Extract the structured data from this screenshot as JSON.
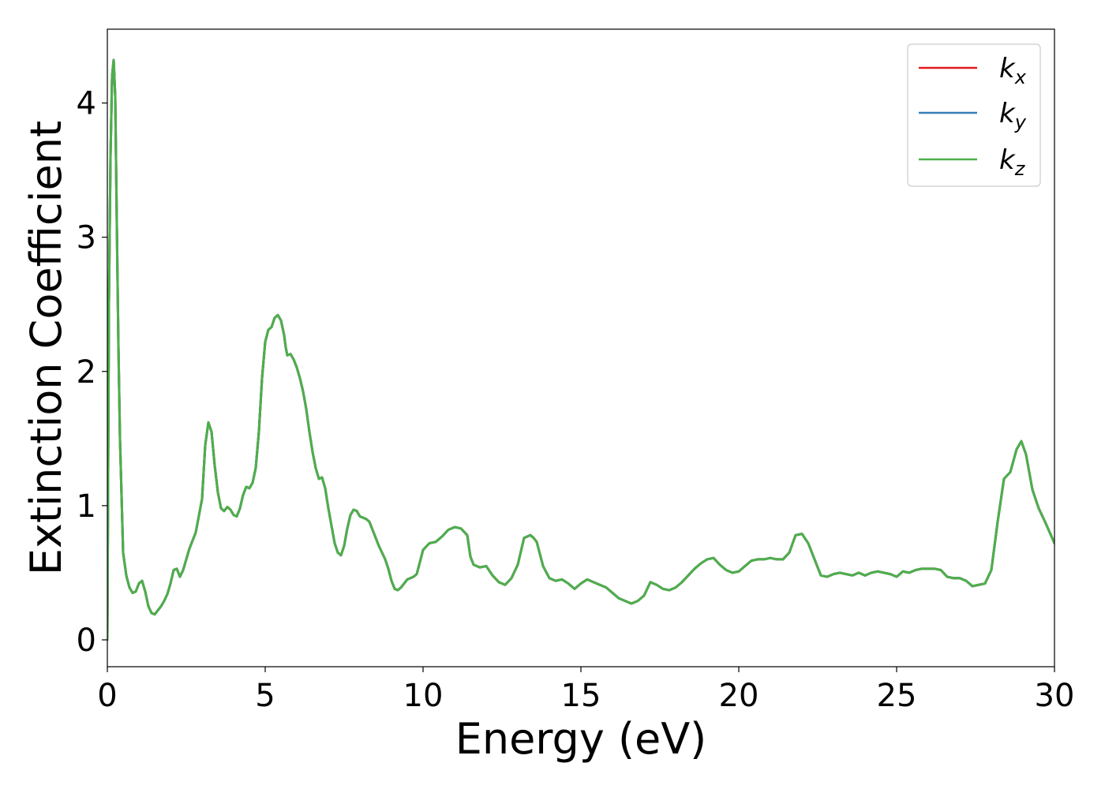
{
  "chart_data": {
    "type": "line",
    "title": "",
    "xlabel": "Energy (eV)",
    "ylabel": "Extinction Coefficient",
    "xlim": [
      0,
      30
    ],
    "ylim": [
      -0.2,
      4.55
    ],
    "xticks": [
      0,
      5,
      10,
      15,
      20,
      25,
      30
    ],
    "xtick_labels": [
      "0",
      "5",
      "10",
      "15",
      "20",
      "25",
      "30"
    ],
    "yticks": [
      0,
      1,
      2,
      3,
      4
    ],
    "ytick_labels": [
      "0",
      "1",
      "2",
      "3",
      "4"
    ],
    "grid": false,
    "legend_position": "top-right",
    "series": [
      {
        "name": "k_x",
        "legend_main": "k",
        "legend_sub": "x",
        "color": "#e41a1c",
        "x": [
          0,
          0.05,
          0.1,
          0.15,
          0.2,
          0.25,
          0.3,
          0.35,
          0.4,
          0.5,
          0.6,
          0.7,
          0.8,
          0.9,
          1.0,
          1.1,
          1.2,
          1.3,
          1.4,
          1.5,
          1.6,
          1.7,
          1.8,
          1.9,
          2.0,
          2.1,
          2.2,
          2.3,
          2.4,
          2.5,
          2.6,
          2.8,
          3.0,
          3.1,
          3.2,
          3.3,
          3.4,
          3.5,
          3.6,
          3.7,
          3.8,
          3.9,
          4.0,
          4.1,
          4.2,
          4.3,
          4.4,
          4.5,
          4.6,
          4.7,
          4.8,
          4.9,
          5.0,
          5.1,
          5.2,
          5.3,
          5.4,
          5.5,
          5.6,
          5.65,
          5.7,
          5.8,
          5.9,
          6.0,
          6.1,
          6.2,
          6.3,
          6.4,
          6.5,
          6.6,
          6.7,
          6.8,
          6.9,
          7.0,
          7.1,
          7.2,
          7.3,
          7.4,
          7.5,
          7.6,
          7.7,
          7.8,
          7.9,
          8.0,
          8.1,
          8.2,
          8.3,
          8.4,
          8.5,
          8.6,
          8.7,
          8.8,
          8.9,
          9.0,
          9.1,
          9.2,
          9.3,
          9.4,
          9.5,
          9.6,
          9.7,
          9.8,
          9.9,
          10.0,
          10.2,
          10.4,
          10.6,
          10.8,
          11.0,
          11.2,
          11.4,
          11.5,
          11.6,
          11.8,
          12.0,
          12.2,
          12.4,
          12.6,
          12.8,
          13.0,
          13.2,
          13.4,
          13.5,
          13.6,
          13.8,
          14.0,
          14.2,
          14.4,
          14.6,
          14.8,
          15.0,
          15.2,
          15.4,
          15.6,
          15.8,
          16.0,
          16.2,
          16.4,
          16.6,
          16.8,
          17.0,
          17.2,
          17.4,
          17.6,
          17.8,
          18.0,
          18.2,
          18.4,
          18.6,
          18.8,
          19.0,
          19.2,
          19.4,
          19.6,
          19.8,
          20.0,
          20.2,
          20.4,
          20.6,
          20.8,
          21.0,
          21.2,
          21.4,
          21.6,
          21.8,
          22.0,
          22.2,
          22.4,
          22.6,
          22.8,
          23.0,
          23.2,
          23.4,
          23.6,
          23.8,
          24.0,
          24.2,
          24.4,
          24.6,
          24.8,
          25.0,
          25.2,
          25.4,
          25.6,
          25.8,
          26.0,
          26.2,
          26.4,
          26.6,
          26.8,
          27.0,
          27.2,
          27.4,
          27.6,
          27.8,
          28.0,
          28.2,
          28.4,
          28.6,
          28.8,
          28.95,
          29.1,
          29.3,
          29.5,
          29.7,
          29.85,
          30.0
        ],
        "y": [
          0.0,
          2.5,
          3.6,
          4.2,
          4.32,
          4.05,
          3.1,
          2.2,
          1.5,
          0.65,
          0.48,
          0.39,
          0.35,
          0.36,
          0.42,
          0.44,
          0.36,
          0.25,
          0.2,
          0.19,
          0.22,
          0.25,
          0.29,
          0.34,
          0.42,
          0.52,
          0.53,
          0.47,
          0.52,
          0.6,
          0.68,
          0.8,
          1.05,
          1.45,
          1.62,
          1.55,
          1.3,
          1.1,
          0.98,
          0.96,
          0.99,
          0.97,
          0.93,
          0.92,
          0.98,
          1.08,
          1.14,
          1.13,
          1.17,
          1.28,
          1.55,
          1.95,
          2.22,
          2.31,
          2.33,
          2.4,
          2.42,
          2.38,
          2.27,
          2.18,
          2.12,
          2.13,
          2.09,
          2.03,
          1.95,
          1.85,
          1.72,
          1.55,
          1.4,
          1.28,
          1.2,
          1.21,
          1.13,
          0.98,
          0.85,
          0.72,
          0.65,
          0.63,
          0.7,
          0.83,
          0.93,
          0.97,
          0.96,
          0.92,
          0.91,
          0.9,
          0.88,
          0.82,
          0.76,
          0.7,
          0.65,
          0.6,
          0.53,
          0.44,
          0.38,
          0.37,
          0.39,
          0.42,
          0.45,
          0.46,
          0.47,
          0.49,
          0.58,
          0.67,
          0.72,
          0.73,
          0.77,
          0.82,
          0.84,
          0.83,
          0.78,
          0.62,
          0.56,
          0.54,
          0.55,
          0.48,
          0.43,
          0.41,
          0.46,
          0.56,
          0.76,
          0.78,
          0.76,
          0.73,
          0.55,
          0.46,
          0.44,
          0.45,
          0.42,
          0.38,
          0.42,
          0.45,
          0.43,
          0.41,
          0.39,
          0.35,
          0.31,
          0.29,
          0.27,
          0.29,
          0.33,
          0.43,
          0.41,
          0.38,
          0.37,
          0.39,
          0.43,
          0.48,
          0.53,
          0.57,
          0.6,
          0.61,
          0.56,
          0.52,
          0.5,
          0.51,
          0.55,
          0.59,
          0.6,
          0.6,
          0.61,
          0.6,
          0.6,
          0.65,
          0.78,
          0.79,
          0.72,
          0.6,
          0.48,
          0.47,
          0.49,
          0.5,
          0.49,
          0.48,
          0.5,
          0.48,
          0.5,
          0.51,
          0.5,
          0.49,
          0.47,
          0.51,
          0.5,
          0.52,
          0.53,
          0.53,
          0.53,
          0.52,
          0.47,
          0.46,
          0.46,
          0.44,
          0.4,
          0.41,
          0.42,
          0.52,
          0.88,
          1.2,
          1.25,
          1.42,
          1.48,
          1.38,
          1.12,
          0.98,
          0.88,
          0.8,
          0.72
        ]
      },
      {
        "name": "k_y",
        "legend_main": "k",
        "legend_sub": "y",
        "color": "#377eb8",
        "same_as": "k_x"
      },
      {
        "name": "k_z",
        "legend_main": "k",
        "legend_sub": "z",
        "color": "#4daf4a",
        "same_as": "k_x"
      }
    ]
  }
}
